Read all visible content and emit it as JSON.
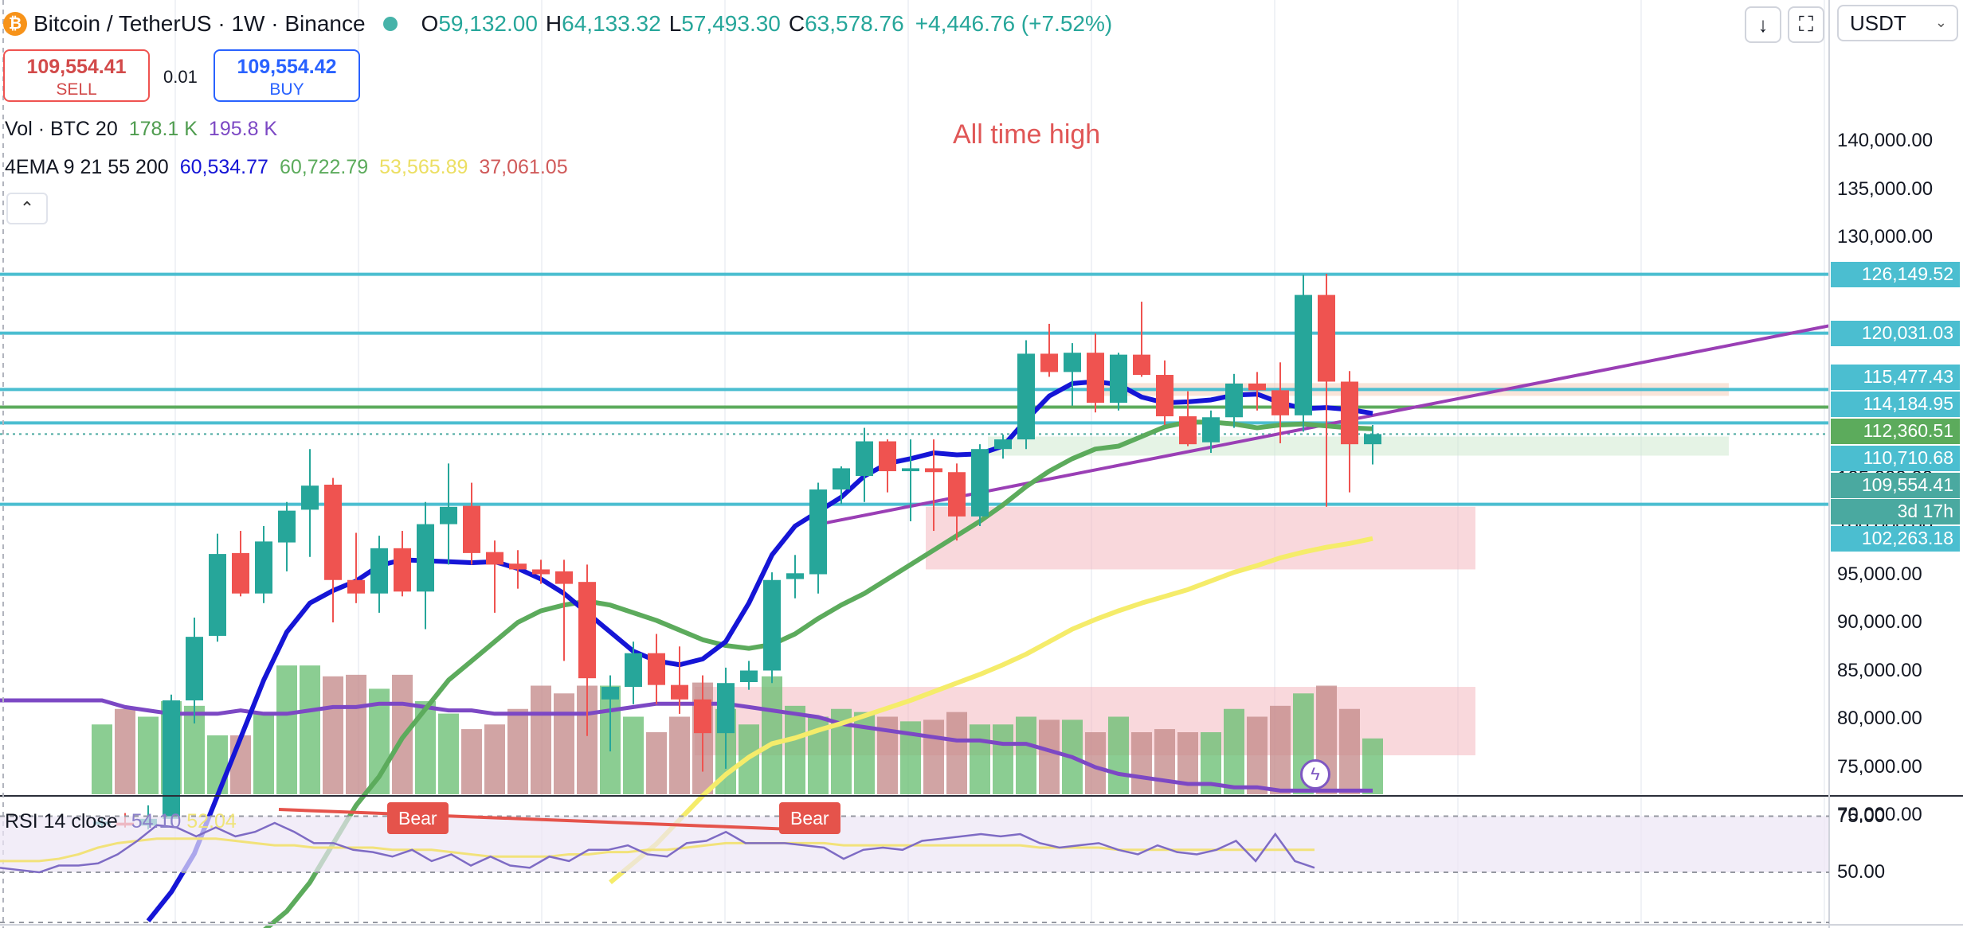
{
  "header": {
    "symbol_icon": "bitcoin-icon",
    "title": "Bitcoin / TetherUS · 1W · Binance",
    "o_label": "O",
    "o": "59,132.00",
    "h_label": "H",
    "h": "64,133.32",
    "l_label": "L",
    "l": "57,493.30",
    "c_label": "C",
    "c": "63,578.76",
    "change": "+4,446.76 (+7.52%)"
  },
  "toolbar": {
    "download_icon": "↓",
    "fullscreen_icon": "⛶",
    "currency": "USDT"
  },
  "trade": {
    "sell_price": "109,554.41",
    "sell_label": "SELL",
    "qty": "0.01",
    "buy_price": "109,554.42",
    "buy_label": "BUY"
  },
  "volume_legend": {
    "label": "Vol · BTC 20",
    "v1": "178.1 K",
    "v2": "195.8 K"
  },
  "ema_legend": {
    "label": "4EMA 9 21 55 200",
    "v9": "60,534.77",
    "v21": "60,722.79",
    "v55": "53,565.89",
    "v200": "37,061.05"
  },
  "annotation": "All time high",
  "rsi_legend": {
    "label": "RSI 14 close",
    "v1": "54.10",
    "v2": "52.04"
  },
  "colors": {
    "up": "#26a69a",
    "down": "#ef5350",
    "ema9": "#1515d6",
    "ema21": "#5cab5c",
    "ema55": "#f5ec6a",
    "ema200": "#7c48c4",
    "hline": "#4bbed0",
    "rsi": "#7e6bc4"
  },
  "chart_data": {
    "type": "candlestick",
    "price_axis": {
      "ticks": [
        140000,
        135000,
        130000,
        105000,
        100000,
        95000,
        90000,
        85000,
        80000,
        75000,
        70000
      ],
      "labels": [
        "140,000.00",
        "135,000.00",
        "130,000.00",
        "105,000.00",
        "100,000.00",
        "95,000.00",
        "90,000.00",
        "85,000.00",
        "80,000.00",
        "75,000.00",
        "70,000.00"
      ]
    },
    "price_tags": [
      {
        "value": 126149.52,
        "label": "126,149.52",
        "color": "#4bbed0"
      },
      {
        "value": 120031.03,
        "label": "120,031.03",
        "color": "#4bbed0"
      },
      {
        "value": 115477.43,
        "label": "115,477.43",
        "color": "#4bbed0"
      },
      {
        "value": 114184.95,
        "label": "114,184.95",
        "color": "#4bbed0"
      },
      {
        "value": 112360.51,
        "label": "112,360.51",
        "color": "#5cab5c"
      },
      {
        "value": 110710.68,
        "label": "110,710.68",
        "color": "#4bbed0"
      },
      {
        "value": 109554.41,
        "label": "109,554.41",
        "sub": "3d 17h",
        "color": "#4aa9a0"
      },
      {
        "value": 102263.18,
        "label": "102,263.18",
        "color": "#4bbed0"
      }
    ],
    "horizontal_lines": [
      126149.52,
      120031.03,
      114184.95,
      112360.51,
      110710.68,
      102263.18
    ],
    "candles": [
      {
        "o": 69000,
        "h": 69800,
        "l": 68800,
        "c": 69300
      },
      {
        "o": 69200,
        "h": 70200,
        "l": 68700,
        "c": 68900
      },
      {
        "o": 68900,
        "h": 71000,
        "l": 68500,
        "c": 69600
      },
      {
        "o": 69600,
        "h": 82500,
        "l": 69000,
        "c": 81900
      },
      {
        "o": 81900,
        "h": 90500,
        "l": 79500,
        "c": 88500
      },
      {
        "o": 88600,
        "h": 99200,
        "l": 88000,
        "c": 97100
      },
      {
        "o": 97200,
        "h": 99500,
        "l": 92700,
        "c": 93000
      },
      {
        "o": 93000,
        "h": 100000,
        "l": 92000,
        "c": 98400
      },
      {
        "o": 98300,
        "h": 102500,
        "l": 95300,
        "c": 101600
      },
      {
        "o": 101700,
        "h": 108000,
        "l": 96800,
        "c": 104200
      },
      {
        "o": 104300,
        "h": 105000,
        "l": 90000,
        "c": 94400
      },
      {
        "o": 94400,
        "h": 99300,
        "l": 92000,
        "c": 93000
      },
      {
        "o": 93000,
        "h": 99000,
        "l": 91000,
        "c": 97700
      },
      {
        "o": 97700,
        "h": 99500,
        "l": 92700,
        "c": 93200
      },
      {
        "o": 93200,
        "h": 102500,
        "l": 89300,
        "c": 100200
      },
      {
        "o": 100200,
        "h": 106500,
        "l": 96000,
        "c": 102000
      },
      {
        "o": 102100,
        "h": 104500,
        "l": 96000,
        "c": 97200
      },
      {
        "o": 97300,
        "h": 98500,
        "l": 91000,
        "c": 96000
      },
      {
        "o": 96100,
        "h": 97500,
        "l": 93500,
        "c": 95500
      },
      {
        "o": 95500,
        "h": 96500,
        "l": 94000,
        "c": 95000
      },
      {
        "o": 95300,
        "h": 96500,
        "l": 86000,
        "c": 94000
      },
      {
        "o": 94200,
        "h": 96000,
        "l": 78200,
        "c": 84200
      },
      {
        "o": 82000,
        "h": 84500,
        "l": 76600,
        "c": 83300
      },
      {
        "o": 83300,
        "h": 88000,
        "l": 81500,
        "c": 86800
      },
      {
        "o": 86800,
        "h": 88800,
        "l": 81500,
        "c": 83500
      },
      {
        "o": 83500,
        "h": 87500,
        "l": 80500,
        "c": 82000
      },
      {
        "o": 82000,
        "h": 84500,
        "l": 74500,
        "c": 78500
      },
      {
        "o": 78500,
        "h": 85300,
        "l": 74800,
        "c": 83700
      },
      {
        "o": 83800,
        "h": 86000,
        "l": 83000,
        "c": 85000
      },
      {
        "o": 85000,
        "h": 95200,
        "l": 83700,
        "c": 94400
      },
      {
        "o": 94500,
        "h": 97000,
        "l": 92500,
        "c": 95100
      },
      {
        "o": 95000,
        "h": 104500,
        "l": 93000,
        "c": 103800
      },
      {
        "o": 103800,
        "h": 106200,
        "l": 102300,
        "c": 106000
      },
      {
        "o": 105200,
        "h": 110200,
        "l": 102500,
        "c": 108800
      },
      {
        "o": 108800,
        "h": 109000,
        "l": 103500,
        "c": 105700
      },
      {
        "o": 105700,
        "h": 109000,
        "l": 100500,
        "c": 106000
      },
      {
        "o": 106000,
        "h": 109000,
        "l": 99500,
        "c": 105600
      },
      {
        "o": 105600,
        "h": 106500,
        "l": 98500,
        "c": 101000
      },
      {
        "o": 101000,
        "h": 108500,
        "l": 100000,
        "c": 108000
      },
      {
        "o": 108000,
        "h": 109500,
        "l": 107000,
        "c": 109000
      },
      {
        "o": 109000,
        "h": 119300,
        "l": 108000,
        "c": 117900
      },
      {
        "o": 117900,
        "h": 121000,
        "l": 115500,
        "c": 116000
      },
      {
        "o": 116000,
        "h": 119000,
        "l": 112500,
        "c": 118000
      },
      {
        "o": 118000,
        "h": 120000,
        "l": 111800,
        "c": 112800
      },
      {
        "o": 112800,
        "h": 118000,
        "l": 112000,
        "c": 117800
      },
      {
        "o": 117800,
        "h": 123300,
        "l": 115500,
        "c": 115700
      },
      {
        "o": 115700,
        "h": 117200,
        "l": 110500,
        "c": 111400
      },
      {
        "o": 111400,
        "h": 114000,
        "l": 108300,
        "c": 108500
      },
      {
        "o": 108700,
        "h": 112000,
        "l": 107600,
        "c": 111300
      },
      {
        "o": 111300,
        "h": 115800,
        "l": 110200,
        "c": 114800
      },
      {
        "o": 114800,
        "h": 116000,
        "l": 112000,
        "c": 114100
      },
      {
        "o": 114100,
        "h": 117000,
        "l": 108600,
        "c": 111500
      },
      {
        "o": 111500,
        "h": 126100,
        "l": 109800,
        "c": 124000
      },
      {
        "o": 124000,
        "h": 126200,
        "l": 102000,
        "c": 115000
      },
      {
        "o": 115000,
        "h": 116100,
        "l": 103500,
        "c": 108500
      },
      {
        "o": 108500,
        "h": 110500,
        "l": 106400,
        "c": 109554
      }
    ],
    "volume": [
      45,
      55,
      50,
      60,
      57,
      38,
      38,
      53,
      83,
      83,
      76,
      77,
      68,
      77,
      60,
      52,
      42,
      45,
      55,
      70,
      65,
      70,
      70,
      50,
      40,
      50,
      72,
      55,
      45,
      76,
      57,
      50,
      55,
      53,
      50,
      47,
      48,
      53,
      45,
      45,
      50,
      48,
      48,
      40,
      50,
      40,
      42,
      40,
      40,
      55,
      50,
      57,
      65,
      70,
      55,
      36
    ],
    "volume_ma": [
      77,
      75,
      74,
      73,
      73,
      73,
      74,
      73,
      73,
      74,
      75,
      75,
      76,
      76,
      75,
      74,
      74,
      73,
      73,
      73,
      73,
      73,
      74,
      75,
      76,
      76,
      76,
      76,
      75,
      74,
      73,
      72,
      70,
      69,
      68,
      67,
      66,
      65,
      65,
      64,
      64,
      62,
      60,
      57,
      55,
      54,
      53,
      52,
      52,
      51,
      51,
      50,
      50,
      50,
      50,
      50
    ],
    "ema9": [
      59000,
      62000,
      66000,
      72000,
      78000,
      84000,
      89000,
      92000,
      93300,
      94300,
      95900,
      96500,
      96400,
      96300,
      96200,
      96300,
      95600,
      94500,
      93000,
      91000,
      89000,
      87000,
      86000,
      85600,
      86200,
      88000,
      92000,
      97000,
      100000,
      101500,
      103000,
      105200,
      106500,
      107000,
      107600,
      107400,
      107500,
      108300,
      111000,
      113500,
      114800,
      115000,
      114700,
      113400,
      112800,
      112900,
      113100,
      113600,
      113700,
      112800,
      112200,
      112300,
      112100,
      111700
    ],
    "ema21": [
      58000,
      60000,
      63000,
      67000,
      71000,
      74000,
      78000,
      81000,
      84000,
      86000,
      88000,
      90000,
      91200,
      91800,
      92200,
      91800,
      91000,
      90200,
      89200,
      88200,
      87600,
      87300,
      87700,
      88800,
      90400,
      91800,
      93000,
      94500,
      96000,
      97500,
      99000,
      100500,
      102200,
      104100,
      105700,
      107000,
      108000,
      108300,
      109300,
      110300,
      110800,
      110800,
      110600,
      110200,
      110500,
      110600,
      110400,
      110200,
      110100
    ],
    "ema55": [
      63000,
      65000,
      67000,
      69500,
      72000,
      74200,
      76000,
      77400,
      78000,
      78800,
      79500,
      80300,
      81100,
      81900,
      82800,
      83700,
      84600,
      85600,
      86700,
      88000,
      89300,
      90300,
      91200,
      92000,
      92700,
      93400,
      94300,
      95200,
      95900,
      96700,
      97300,
      97800,
      98200,
      98700
    ],
    "rsi_axis": {
      "ticks": [
        75,
        50
      ],
      "labels": [
        "75.00",
        "50.00"
      ]
    },
    "rsi": [
      52,
      51,
      50,
      53,
      53,
      54,
      58,
      64,
      71,
      70,
      66,
      70,
      66,
      68,
      72,
      68,
      63,
      63,
      60,
      59,
      57,
      60,
      55,
      58,
      53,
      57,
      53,
      52,
      57,
      55,
      60,
      60,
      62,
      58,
      57,
      63,
      64,
      68,
      63,
      63,
      63,
      62,
      61,
      56,
      60,
      61,
      60,
      64,
      65,
      66,
      67,
      66,
      67,
      63,
      61,
      62,
      63,
      60,
      58,
      62,
      59,
      58,
      60,
      64,
      55,
      67,
      55,
      52
    ],
    "rsi_ma": [
      55,
      55,
      55,
      56,
      58,
      61,
      63,
      64,
      65,
      65,
      65,
      65,
      64,
      63,
      62,
      62,
      61,
      61,
      61,
      61,
      60,
      60,
      60,
      59,
      58,
      57,
      57,
      57,
      57,
      58,
      58,
      59,
      59,
      60,
      60,
      61,
      62,
      63,
      63,
      63,
      63,
      63,
      63,
      62,
      62,
      62,
      62,
      62,
      62,
      62,
      62,
      62,
      62,
      61,
      61,
      61,
      61,
      60,
      60,
      60,
      60,
      60,
      60,
      60,
      60,
      60,
      60,
      60
    ],
    "bear_labels": [
      "Bear",
      "Bear"
    ]
  }
}
